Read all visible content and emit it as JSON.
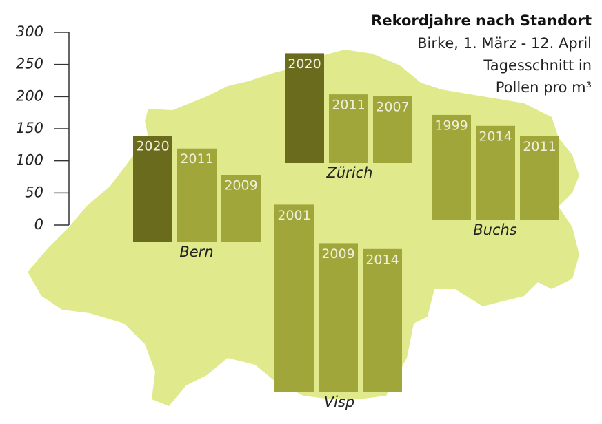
{
  "chart_data": {
    "type": "bar",
    "title": "Rekordjahre nach Standort",
    "subtitle": [
      "Birke, 1. März - 12. April",
      "Tagesschnitt in",
      "Pollen pro m³"
    ],
    "ylim": [
      0,
      300
    ],
    "yticks": [
      0,
      50,
      100,
      150,
      200,
      250,
      300
    ],
    "groups": [
      {
        "name": "Bern",
        "categories": [
          "2020",
          "2011",
          "2009"
        ],
        "values": [
          166,
          146,
          105
        ],
        "colors": [
          "#6b6b1e",
          "#a0a63a",
          "#a0a63a"
        ]
      },
      {
        "name": "Zürich",
        "categories": [
          "2020",
          "2011",
          "2007"
        ],
        "values": [
          171,
          107,
          104
        ],
        "colors": [
          "#6b6b1e",
          "#a0a63a",
          "#a0a63a"
        ]
      },
      {
        "name": "Buchs",
        "categories": [
          "1999",
          "2014",
          "2011"
        ],
        "values": [
          164,
          147,
          131
        ],
        "colors": [
          "#a0a63a",
          "#a0a63a",
          "#a0a63a"
        ]
      },
      {
        "name": "Visp",
        "categories": [
          "2001",
          "2009",
          "2014"
        ],
        "values": [
          291,
          231,
          222
        ],
        "colors": [
          "#a0a63a",
          "#a0a63a",
          "#a0a63a"
        ]
      }
    ]
  }
}
